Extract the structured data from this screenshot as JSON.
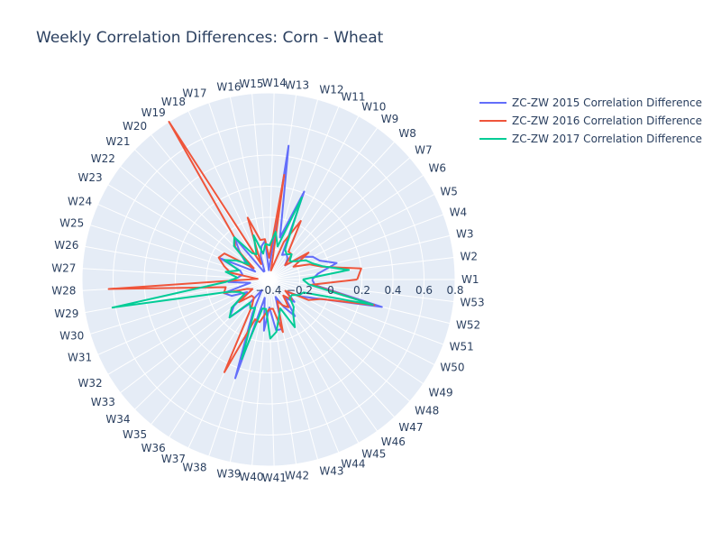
{
  "chart_data": {
    "type": "line",
    "subtype": "polar",
    "title": "Weekly Correlation Differences: Corn - Wheat",
    "theta": [
      "W1",
      "W2",
      "W3",
      "W4",
      "W5",
      "W6",
      "W7",
      "W8",
      "W9",
      "W10",
      "W11",
      "W12",
      "W13",
      "W14",
      "W15",
      "W16",
      "W17",
      "W18",
      "W19",
      "W20",
      "W21",
      "W22",
      "W23",
      "W24",
      "W25",
      "W26",
      "W27",
      "W28",
      "W29",
      "W30",
      "W31",
      "W32",
      "W33",
      "W34",
      "W35",
      "W36",
      "W37",
      "W38",
      "W39",
      "W40",
      "W41",
      "W42",
      "W43",
      "W44",
      "W45",
      "W46",
      "W47",
      "W48",
      "W49",
      "W50",
      "W51",
      "W52",
      "W53"
    ],
    "radial_range": [
      -0.4,
      0.8
    ],
    "radial_ticks": [
      "−0.4",
      "−0.2",
      "0",
      "0.2",
      "0.4",
      "0.6",
      "0.8"
    ],
    "radial_tick_values": [
      -0.4,
      -0.2,
      0,
      0.2,
      0.4,
      0.6,
      0.8
    ],
    "grid": true,
    "legend_position": "top-right",
    "series": [
      {
        "name": "ZC-ZW 2015 Correlation Difference",
        "color": "#636efa",
        "values": [
          -0.12,
          -0.08,
          0.05,
          -0.05,
          -0.08,
          -0.14,
          -0.26,
          -0.22,
          -0.2,
          -0.22,
          0.21,
          -0.12,
          0.47,
          -0.34,
          -0.15,
          -0.18,
          -0.24,
          -0.34,
          -0.34,
          -0.05,
          -0.14,
          -0.21,
          -0.3,
          -0.06,
          -0.21,
          -0.23,
          -0.2,
          -0.14,
          -0.28,
          -0.1,
          -0.14,
          -0.24,
          -0.12,
          -0.05,
          -0.19,
          -0.32,
          -0.16,
          0.27,
          -0.28,
          -0.07,
          -0.22,
          -0.07,
          -0.07,
          -0.28,
          -0.2,
          -0.11,
          -0.24,
          -0.18,
          -0.26,
          -0.16,
          -0.04,
          0.35,
          -0.1
        ]
      },
      {
        "name": "ZC-ZW 2016 Correlation Difference",
        "color": "#ef553b",
        "values": [
          0.17,
          0.2,
          -0.05,
          -0.12,
          -0.22,
          -0.09,
          -0.26,
          -0.18,
          -0.18,
          0.03,
          -0.14,
          -0.34,
          0.28,
          -0.26,
          -0.14,
          -0.14,
          0.02,
          -0.29,
          0.8,
          -0.05,
          -0.1,
          -0.28,
          -0.07,
          -0.05,
          -0.1,
          -0.15,
          -0.33,
          0.63,
          -0.12,
          -0.1,
          -0.25,
          -0.28,
          -0.16,
          -0.25,
          -0.25,
          -0.2,
          0.26,
          -0.13,
          -0.12,
          -0.18,
          -0.21,
          -0.21,
          -0.05,
          -0.25,
          -0.21,
          -0.18,
          -0.26,
          -0.2,
          -0.27,
          -0.11,
          -0.04,
          0.3,
          -0.12
        ]
      },
      {
        "name": "ZC-ZW 2017 Correlation Difference",
        "color": "#00cc96",
        "values": [
          -0.18,
          0.12,
          -0.04,
          -0.1,
          -0.13,
          -0.19,
          -0.22,
          -0.18,
          -0.2,
          -0.18,
          0.17,
          -0.18,
          -0.09,
          -0.18,
          -0.17,
          -0.23,
          -0.1,
          -0.22,
          -0.2,
          -0.05,
          -0.09,
          -0.24,
          -0.16,
          -0.09,
          -0.2,
          -0.12,
          -0.2,
          -0.12,
          0.62,
          -0.13,
          -0.2,
          -0.22,
          -0.1,
          -0.05,
          -0.21,
          -0.18,
          -0.2,
          0.14,
          -0.21,
          -0.21,
          -0.02,
          -0.06,
          -0.15,
          -0.2,
          -0.05,
          -0.13,
          -0.16,
          -0.22,
          -0.22,
          -0.18,
          -0.16,
          0.29,
          -0.14
        ]
      }
    ]
  }
}
